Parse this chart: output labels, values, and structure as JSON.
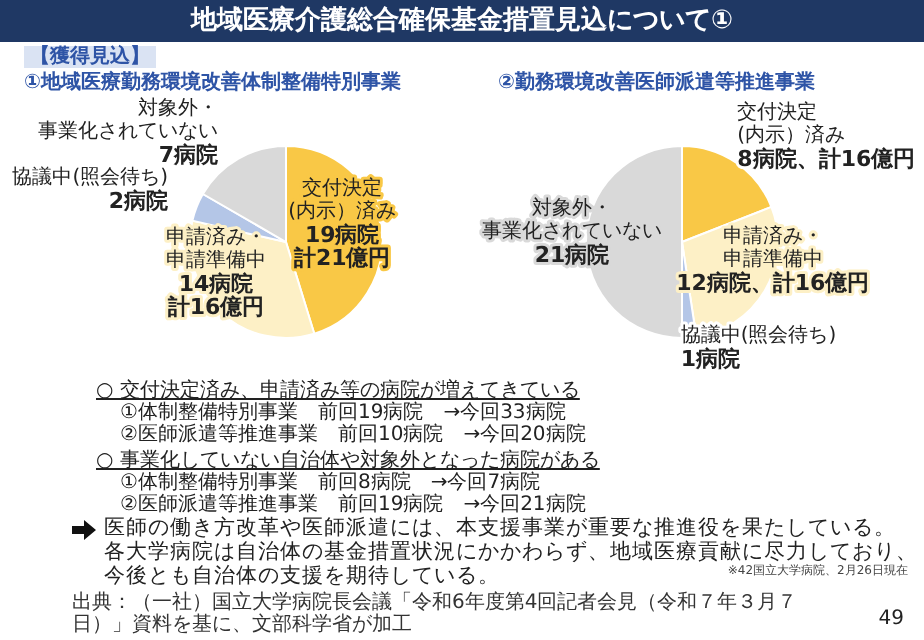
{
  "chart_data": [
    {
      "type": "pie",
      "title": "①地域医療勤務環境改善体制整備特別事業",
      "categories": [
        "交付決定(内示）済み",
        "申請済み・申請準備中",
        "協議中(照会待ち)",
        "対象外・事業化されていない"
      ],
      "values": [
        19,
        14,
        2,
        7
      ],
      "colors": [
        "#f9c846",
        "#fdf0c6",
        "#b4c6e7",
        "#d9d9d9"
      ],
      "value_labels": [
        "19病院計21億円",
        "14病院計16億円",
        "2病院",
        "7病院"
      ],
      "legend": false,
      "annotations": [
        "地域医療介護総合確保基金措置見込について①",
        "【獲得見込】"
      ]
    },
    {
      "type": "pie",
      "title": "②勤務環境改善医師派遣等推進事業",
      "categories": [
        "交付決定(内示）済み",
        "申請済み・申請準備中",
        "協議中(照会待ち)",
        "対象外・事業化されていない"
      ],
      "values": [
        8,
        12,
        1,
        21
      ],
      "colors": [
        "#f9c846",
        "#fdf0c6",
        "#b4c6e7",
        "#d9d9d9"
      ],
      "value_labels": [
        "8病院、計16億円",
        "12病院、計16億円",
        "1病院",
        "21病院"
      ],
      "legend": false,
      "annotations": [
        "○ 交付決定済み、申請済み等の病院が増えてきている",
        "①体制整備特別事業　前回19病院　→今回33病院",
        "②医師派遣等推進事業　前回10病院　→今回20病院",
        "○ 事業化していない自治体や対象外となった病院がある",
        "①体制整備特別事業　前回8病院　→今回7病院",
        "②医師派遣等推進事業　前回19病院　→今回21病院",
        "医師の働き方改革や医師派遣には、本支援事業が重要な推進役を果たしている。",
        "各大学病院は自治体の基金措置状況にかかわらず、地域医療貢献に尽力しており、",
        "今後とも自治体の支援を期待している。",
        "※42国立大学病院、2月26日現在",
        "出典：（一社）国立大学病院長会議「令和6年度第4回記者会見（令和７年３月７日）」資料を基に、文部科学省が加工",
        "49"
      ]
    }
  ]
}
